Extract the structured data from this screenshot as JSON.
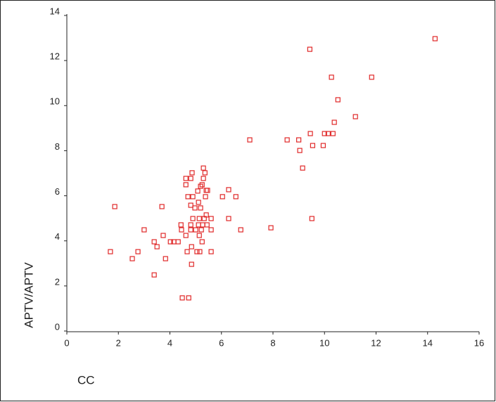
{
  "chart_data": {
    "type": "scatter",
    "xlabel": "CC",
    "ylabel": "APTV/APTV",
    "color": "#e02828",
    "xlim": [
      0,
      16
    ],
    "xticks": [
      0,
      2,
      4,
      6,
      8,
      10,
      12,
      14,
      16
    ],
    "ylim": [
      0,
      14
    ],
    "yticks": [
      0,
      2,
      4,
      6,
      8,
      10,
      12,
      14
    ],
    "x": [
      1.69,
      1.86,
      2.54,
      2.76,
      3.0,
      3.39,
      3.39,
      3.5,
      3.69,
      3.74,
      3.83,
      4.02,
      4.15,
      4.32,
      4.43,
      4.45,
      4.48,
      4.73,
      4.62,
      4.62,
      4.62,
      4.67,
      4.7,
      4.81,
      4.81,
      4.84,
      4.84,
      4.81,
      4.86,
      4.81,
      4.89,
      4.89,
      4.97,
      5.0,
      5.08,
      5.11,
      5.11,
      5.14,
      5.14,
      5.16,
      5.19,
      5.19,
      5.22,
      5.25,
      5.25,
      5.27,
      5.3,
      5.3,
      5.33,
      5.36,
      5.38,
      5.41,
      5.41,
      5.44,
      5.46,
      5.6,
      5.6,
      5.6,
      5.05,
      6.04,
      6.28,
      6.28,
      6.56,
      6.75,
      7.1,
      7.92,
      8.55,
      9.0,
      9.04,
      9.15,
      9.43,
      9.45,
      9.54,
      9.51,
      9.95,
      10.0,
      10.14,
      10.33,
      10.27,
      10.38,
      10.52,
      11.2,
      11.83,
      14.29
    ],
    "values": [
      3.52,
      5.52,
      3.21,
      3.52,
      4.49,
      3.96,
      2.49,
      3.74,
      5.52,
      4.24,
      3.21,
      3.96,
      3.96,
      3.96,
      4.71,
      4.49,
      1.47,
      1.47,
      6.77,
      6.49,
      4.24,
      3.52,
      5.96,
      4.71,
      4.49,
      3.74,
      2.96,
      6.77,
      7.02,
      5.58,
      5.96,
      4.99,
      5.46,
      4.49,
      6.21,
      5.71,
      4.71,
      4.99,
      4.24,
      3.52,
      6.42,
      5.46,
      4.49,
      3.96,
      6.49,
      4.71,
      6.77,
      7.23,
      4.99,
      7.02,
      5.96,
      6.24,
      5.15,
      4.71,
      6.24,
      4.99,
      4.49,
      3.52,
      3.52,
      5.96,
      6.27,
      4.99,
      5.96,
      4.49,
      8.48,
      4.58,
      8.48,
      8.48,
      8.01,
      7.23,
      12.5,
      8.76,
      8.23,
      4.99,
      8.23,
      8.76,
      8.76,
      8.76,
      11.26,
      9.26,
      10.26,
      9.51,
      11.26,
      12.97
    ]
  }
}
